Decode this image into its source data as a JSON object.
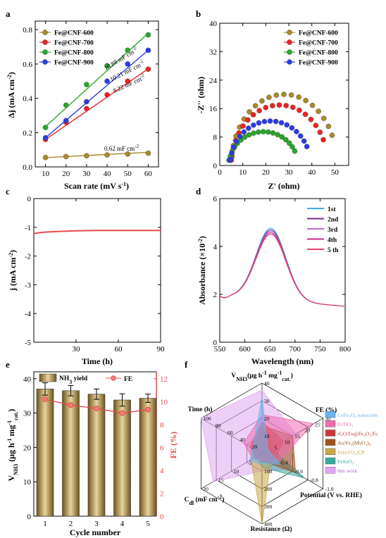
{
  "chart_data": [
    {
      "panel": "a",
      "type": "scatter",
      "xlabel": "Scan rate (mV s⁻¹)",
      "ylabel": "Δj (mA cm⁻²)",
      "xlim": [
        5,
        65
      ],
      "ylim": [
        0,
        0.85
      ],
      "xticks": [
        10,
        20,
        30,
        40,
        50,
        60
      ],
      "yticks": [
        0.0,
        0.2,
        0.4,
        0.6,
        0.8
      ],
      "x": [
        10,
        20,
        30,
        40,
        50,
        60
      ],
      "series": [
        {
          "name": "Fe@CNF-600",
          "color": "#a8892b",
          "values": [
            0.055,
            0.06,
            0.065,
            0.07,
            0.075,
            0.08
          ],
          "slope": "0.62 mF cm⁻²",
          "fit": [
            0.054,
            0.085
          ]
        },
        {
          "name": "Fe@CNF-700",
          "color": "#ee2222",
          "values": [
            0.16,
            0.26,
            0.34,
            0.42,
            0.5,
            0.57
          ],
          "slope": "8.22 mF cm⁻²",
          "fit": [
            0.16,
            0.572
          ]
        },
        {
          "name": "Fe@CNF-800",
          "color": "#2aa52a",
          "values": [
            0.23,
            0.36,
            0.48,
            0.59,
            0.68,
            0.77
          ],
          "slope": "10.88 mF cm⁻²",
          "fit": [
            0.235,
            0.779
          ]
        },
        {
          "name": "Fe@CNF-900",
          "color": "#2a3ce8",
          "values": [
            0.17,
            0.27,
            0.38,
            0.5,
            0.6,
            0.68
          ],
          "slope": "10.21 mF cm⁻²",
          "fit": [
            0.17,
            0.68
          ]
        }
      ]
    },
    {
      "panel": "b",
      "type": "scatter",
      "xlabel": "Z' (ohm)",
      "ylabel": "-Z'' (ohm)",
      "xlim": [
        0,
        56
      ],
      "ylim": [
        0,
        40
      ],
      "xticks": [
        0,
        10,
        20,
        30,
        40,
        50
      ],
      "yticks": [
        0,
        8,
        16,
        24,
        32,
        40
      ],
      "series": [
        {
          "name": "Fe@CNF-600",
          "color": "#a8892b",
          "center": 28,
          "radius": 23,
          "ymax": 20
        },
        {
          "name": "Fe@CNF-700",
          "color": "#ee2222",
          "center": 26,
          "radius": 21,
          "ymax": 17
        },
        {
          "name": "Fe@CNF-800",
          "color": "#2aa52a",
          "center": 19,
          "radius": 15,
          "ymax": 9.5
        },
        {
          "name": "Fe@CNF-900",
          "color": "#2a3ce8",
          "center": 22,
          "radius": 17.5,
          "ymax": 12.5
        }
      ]
    },
    {
      "panel": "c",
      "type": "line",
      "xlabel": "Time (h)",
      "ylabel": "j (mA cm⁻²)",
      "xlim": [
        0,
        90
      ],
      "ylim": [
        -5,
        0
      ],
      "xticks": [
        30,
        60,
        90
      ],
      "yticks": [
        0,
        -1,
        -2,
        -3,
        -4,
        -5
      ],
      "series": [
        {
          "color": "#e84848",
          "x": [
            0,
            5,
            10,
            20,
            30,
            45,
            60,
            75,
            90
          ],
          "values": [
            -1.22,
            -1.18,
            -1.16,
            -1.14,
            -1.12,
            -1.11,
            -1.11,
            -1.11,
            -1.11
          ]
        }
      ]
    },
    {
      "panel": "d",
      "type": "line",
      "xlabel": "Wavelength (nm)",
      "ylabel": "Absorbance (×10⁻²)",
      "xlim": [
        550,
        800
      ],
      "ylim": [
        0,
        6
      ],
      "xticks": [
        550,
        600,
        650,
        700,
        750,
        800
      ],
      "yticks": [
        0,
        2,
        4,
        6
      ],
      "series": [
        {
          "name": "1st",
          "color": "#3aa8e8",
          "peak": 4.75
        },
        {
          "name": "2nd",
          "color": "#7a2a9a",
          "peak": 4.68
        },
        {
          "name": "3rd",
          "color": "#b86ad0",
          "peak": 4.62
        },
        {
          "name": "4th",
          "color": "#d02a8a",
          "peak": 4.56
        },
        {
          "name": "5 th",
          "color": "#e84060",
          "peak": 4.5
        }
      ]
    },
    {
      "panel": "e",
      "type": "bar",
      "xlabel": "Cycle number",
      "ylabel": "V_NH3 (μg h⁻¹ mg⁻¹cat.)",
      "ylabel2": "FE (%)",
      "categories": [
        "1",
        "2",
        "3",
        "4",
        "5"
      ],
      "ylim": [
        0,
        42
      ],
      "y2lim": [
        0,
        12.6
      ],
      "yticks": [
        0,
        10,
        20,
        30,
        40
      ],
      "y2ticks": [
        0,
        2,
        4,
        6,
        8,
        10,
        12
      ],
      "series": [
        {
          "name": "NH₃ yield",
          "type": "bar",
          "values": [
            37.0,
            36.5,
            35.5,
            33.8,
            34.3
          ],
          "errors": [
            1.8,
            1.5,
            1.5,
            1.8,
            1.2
          ]
        },
        {
          "name": "FE",
          "type": "line",
          "color": "#e84848",
          "values": [
            10.2,
            9.7,
            9.4,
            9.0,
            9.3
          ]
        }
      ]
    },
    {
      "panel": "f",
      "type": "radar",
      "axes": [
        "V_NH3 (μg h⁻¹ mg⁻¹cat.)",
        "FE (%)",
        "Potential (V vs. RHE)",
        "Resistance (Ω)",
        "C_dl (mF cm⁻²)",
        "Time (h)"
      ],
      "axis_ticks": {
        "V": [
          "10",
          "20",
          "30",
          "40"
        ],
        "FE": [
          "5",
          "10",
          "15",
          "20",
          "25",
          "30"
        ],
        "Potential": [
          "-0.4",
          "-0.6",
          "-0.8",
          "-1.0"
        ],
        "Resistance": [
          "100",
          "200",
          "300",
          "400"
        ],
        "Cdl": [
          "5",
          "10",
          "15",
          "20"
        ],
        "Time": [
          "20",
          "40",
          "60",
          "80",
          "100"
        ]
      },
      "series": [
        {
          "name": "CoFe₂O₄ nanocube",
          "color": "#6ab4f0"
        },
        {
          "name": "FeTiO₃",
          "color": "#f06cb0"
        },
        {
          "name": "rGO/Fe@Fe₃O₄/Fc",
          "color": "#c83a3a"
        },
        {
          "name": "Au/Fe₂(MoO₄)₃",
          "color": "#a0521a"
        },
        {
          "name": "FeInVO₄/CP",
          "color": "#c8a848"
        },
        {
          "name": "FeSnO₃",
          "color": "#3aa89a"
        },
        {
          "name": "this work",
          "color": "#e0a8f0"
        }
      ]
    }
  ],
  "labels": {
    "a": "a",
    "b": "b",
    "c": "c",
    "d": "d",
    "e": "e",
    "f": "f"
  }
}
